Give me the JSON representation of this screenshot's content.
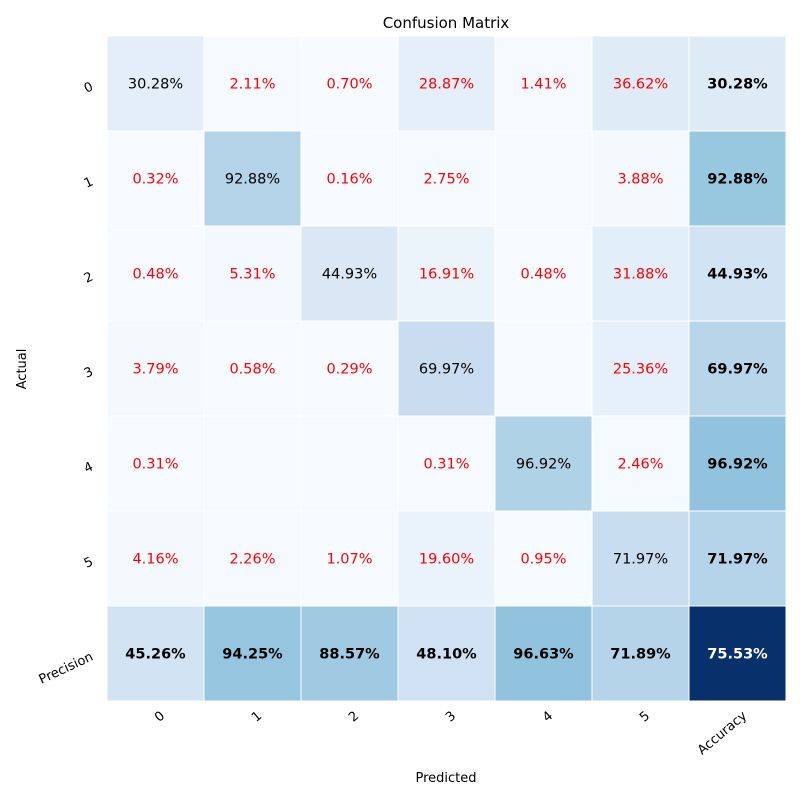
{
  "chart_data": {
    "type": "heatmap",
    "title": "Confusion Matrix",
    "xlabel": "Predicted",
    "ylabel": "Actual",
    "x_categories": [
      "0",
      "1",
      "2",
      "3",
      "4",
      "5",
      "Accuracy"
    ],
    "y_categories": [
      "0",
      "1",
      "2",
      "3",
      "4",
      "5",
      "Precision"
    ],
    "colormap": "Blues",
    "value_range": [
      0,
      100
    ],
    "cells": [
      [
        30.28,
        2.11,
        0.7,
        28.87,
        1.41,
        36.62,
        30.28
      ],
      [
        0.32,
        92.88,
        0.16,
        2.75,
        null,
        3.88,
        92.88
      ],
      [
        0.48,
        5.31,
        44.93,
        16.91,
        0.48,
        31.88,
        44.93
      ],
      [
        3.79,
        0.58,
        0.29,
        69.97,
        null,
        25.36,
        69.97
      ],
      [
        0.31,
        null,
        null,
        0.31,
        96.92,
        2.46,
        96.92
      ],
      [
        4.16,
        2.26,
        1.07,
        19.6,
        0.95,
        71.97,
        71.97
      ],
      [
        45.26,
        94.25,
        88.57,
        48.1,
        96.63,
        71.89,
        75.53
      ]
    ],
    "labels": [
      [
        "30.28%",
        "2.11%",
        "0.70%",
        "28.87%",
        "1.41%",
        "36.62%",
        "30.28%"
      ],
      [
        "0.32%",
        "92.88%",
        "0.16%",
        "2.75%",
        "",
        "3.88%",
        "92.88%"
      ],
      [
        "0.48%",
        "5.31%",
        "44.93%",
        "16.91%",
        "0.48%",
        "31.88%",
        "44.93%"
      ],
      [
        "3.79%",
        "0.58%",
        "0.29%",
        "69.97%",
        "",
        "25.36%",
        "69.97%"
      ],
      [
        "0.31%",
        "",
        "",
        "0.31%",
        "96.92%",
        "2.46%",
        "96.92%"
      ],
      [
        "4.16%",
        "2.26%",
        "1.07%",
        "19.60%",
        "0.95%",
        "71.97%",
        "71.97%"
      ],
      [
        "45.26%",
        "94.25%",
        "88.57%",
        "48.10%",
        "96.63%",
        "71.89%",
        "75.53%"
      ]
    ],
    "colors": {
      "misclassified_text": "#ff0000",
      "diagonal_text": "#000000",
      "summary_text": "#000000",
      "summary_text_dark_bg": "#ffffff",
      "grid_line": "#ffffff",
      "empty_cell": "#f7fbff",
      "accuracy_total": "#08306b"
    }
  }
}
